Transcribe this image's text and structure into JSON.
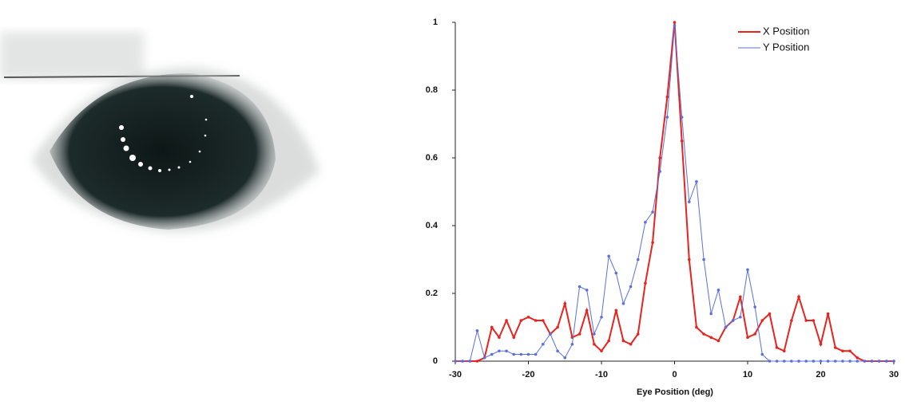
{
  "chart_data": {
    "type": "line",
    "xlabel": "Eye Position (deg)",
    "x": [
      -30,
      -29,
      -28,
      -27,
      -26,
      -25,
      -24,
      -23,
      -22,
      -21,
      -20,
      -19,
      -18,
      -17,
      -16,
      -15,
      -14,
      -13,
      -12,
      -11,
      -10,
      -9,
      -8,
      -7,
      -6,
      -5,
      -4,
      -3,
      -2,
      -1,
      0,
      1,
      2,
      3,
      4,
      5,
      6,
      7,
      8,
      9,
      10,
      11,
      12,
      13,
      14,
      15,
      16,
      17,
      18,
      19,
      20,
      21,
      22,
      23,
      24,
      25,
      26,
      27,
      28,
      29,
      30
    ],
    "series": [
      {
        "name": "X Position",
        "color": "#e8231e",
        "values": [
          0,
          0,
          0,
          0,
          0.01,
          0.1,
          0.07,
          0.12,
          0.07,
          0.12,
          0.13,
          0.12,
          0.12,
          0.08,
          0.1,
          0.17,
          0.07,
          0.08,
          0.15,
          0.05,
          0.03,
          0.06,
          0.15,
          0.06,
          0.05,
          0.08,
          0.23,
          0.35,
          0.6,
          0.78,
          1,
          0.65,
          0.3,
          0.1,
          0.08,
          0.07,
          0.06,
          0.1,
          0.12,
          0.19,
          0.07,
          0.08,
          0.12,
          0.14,
          0.04,
          0.03,
          0.12,
          0.19,
          0.12,
          0.12,
          0.05,
          0.14,
          0.04,
          0.03,
          0.03,
          0.01,
          0,
          0,
          0,
          0,
          0
        ]
      },
      {
        "name": "Y Position",
        "color": "#5a6fe0",
        "values": [
          0,
          0,
          0,
          0.09,
          0.01,
          0.02,
          0.03,
          0.03,
          0.02,
          0.02,
          0.02,
          0.02,
          0.05,
          0.08,
          0.03,
          0.01,
          0.05,
          0.22,
          0.21,
          0.08,
          0.13,
          0.31,
          0.26,
          0.17,
          0.22,
          0.3,
          0.41,
          0.44,
          0.56,
          0.72,
          0.99,
          0.72,
          0.47,
          0.53,
          0.3,
          0.14,
          0.21,
          0.1,
          0.12,
          0.13,
          0.27,
          0.16,
          0.02,
          0,
          0,
          0,
          0,
          0,
          0,
          0,
          0,
          0,
          0,
          0,
          0,
          0,
          0,
          0,
          0,
          0,
          0
        ]
      }
    ],
    "xlim": [
      -30,
      30
    ],
    "xticks": [
      -30,
      -20,
      -10,
      0,
      10,
      20,
      30
    ],
    "ylim": [
      0,
      1
    ],
    "yticks": [
      0,
      0.2,
      0.4,
      0.6,
      0.8,
      1
    ],
    "legend": "upper right"
  }
}
